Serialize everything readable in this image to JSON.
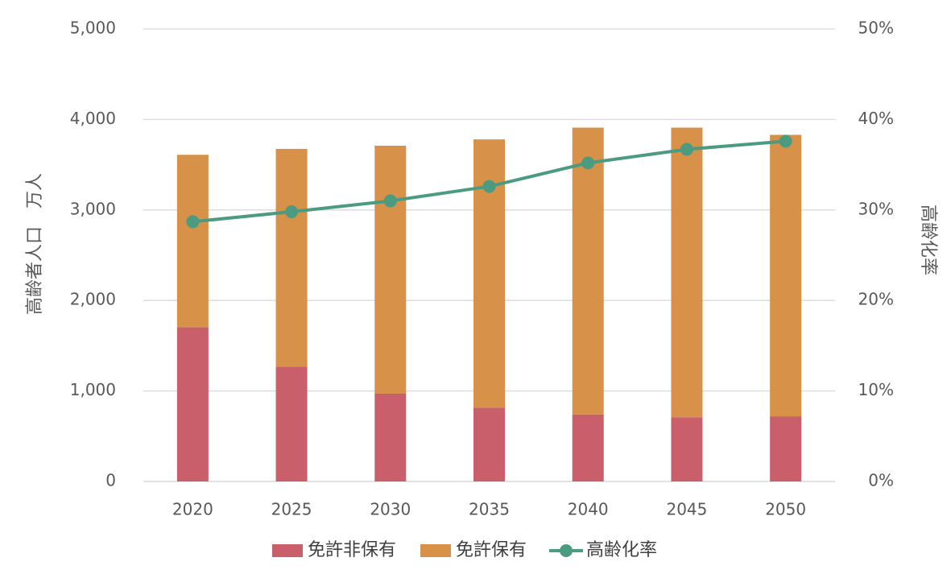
{
  "chart_data": {
    "type": "bar",
    "stacked": true,
    "categories": [
      "2020",
      "2025",
      "2030",
      "2035",
      "2040",
      "2045",
      "2050"
    ],
    "series": [
      {
        "name": "免許非保有",
        "type": "bar",
        "axis": "left",
        "color": "#c95f6b",
        "values": [
          1705,
          1270,
          970,
          815,
          740,
          710,
          720
        ]
      },
      {
        "name": "免許保有",
        "type": "bar",
        "axis": "left",
        "color": "#d79148",
        "values": [
          1905,
          2405,
          2740,
          2965,
          3170,
          3200,
          3110
        ]
      },
      {
        "name": "高齢化率",
        "type": "line",
        "axis": "right",
        "color": "#4c9a80",
        "values": [
          28.7,
          29.8,
          31.0,
          32.6,
          35.2,
          36.7,
          37.6
        ]
      }
    ],
    "ylabel": "高齢者人口　万人",
    "y2label": "高齢化率",
    "ylim": [
      0,
      5000
    ],
    "y2lim": [
      0,
      50
    ],
    "yticks": [
      "0",
      "1,000",
      "2,000",
      "3,000",
      "4,000",
      "5,000"
    ],
    "y2ticks": [
      "0%",
      "10%",
      "20%",
      "30%",
      "40%",
      "50%"
    ],
    "grid": true,
    "legend": "bottom"
  }
}
